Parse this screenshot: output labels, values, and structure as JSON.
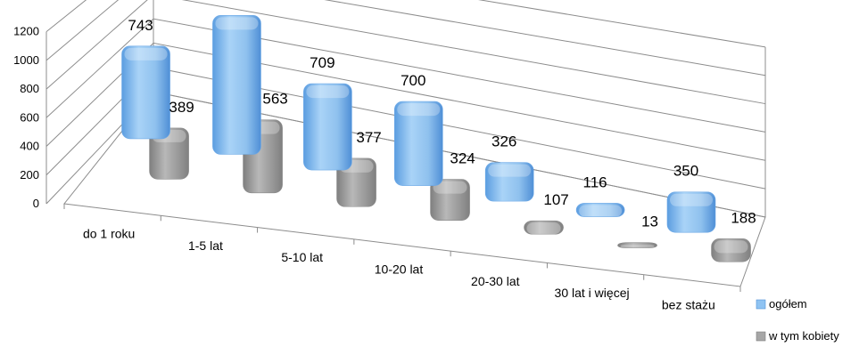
{
  "chart_data": {
    "type": "bar",
    "categories": [
      "do 1 roku",
      "1-5 lat",
      "5-10 lat",
      "10-20 lat",
      "20-30 lat",
      "30 lat i więcej",
      "bez stażu"
    ],
    "series": [
      {
        "name": "ogółem",
        "values": [
          743,
          1128,
          709,
          700,
          326,
          116,
          350
        ],
        "color": "#8fc3f2"
      },
      {
        "name": "w tym kobiety",
        "values": [
          389,
          563,
          377,
          324,
          107,
          13,
          188
        ],
        "color": "#a6a6a6"
      }
    ],
    "yticks": [
      "0",
      "200",
      "400",
      "600",
      "800",
      "1000",
      "1200"
    ],
    "ylim": [
      0,
      1200
    ],
    "grid": true,
    "legend": "bottom-right",
    "title": "",
    "xlabel": "",
    "ylabel": ""
  }
}
